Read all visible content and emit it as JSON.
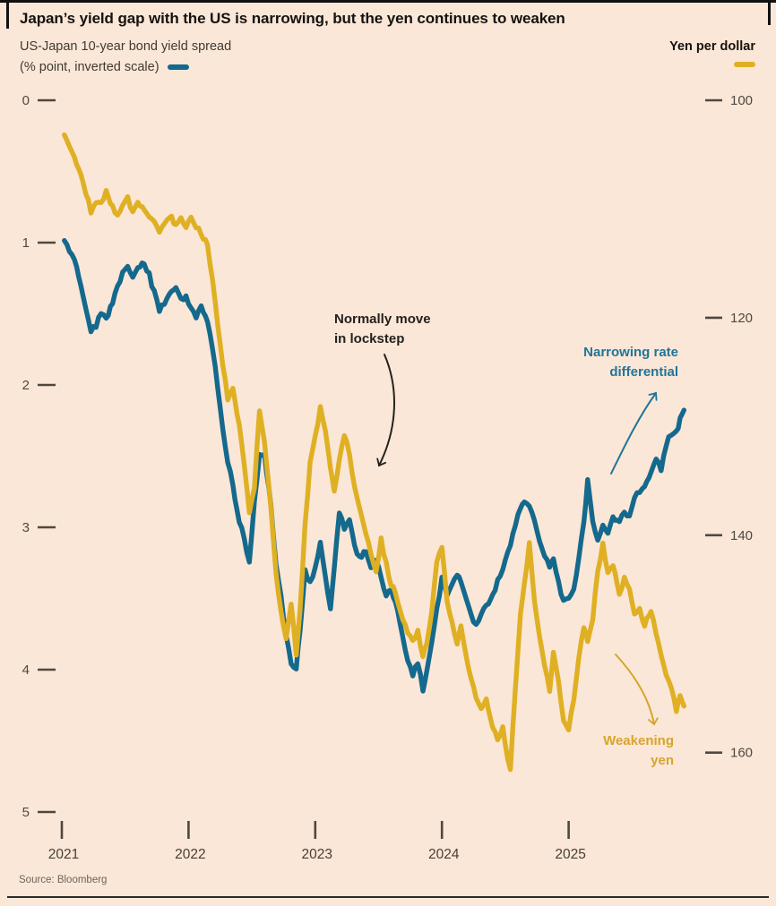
{
  "header": {
    "title": "Japan’s yield gap with the US is narrowing, but the yen continues to weaken",
    "subtitle_line1": "US-Japan 10-year bond yield spread",
    "subtitle_line2": "(% point, inverted scale)",
    "right_label": "Yen per dollar"
  },
  "source": "Source: Bloomberg",
  "colors": {
    "background": "#fbe7d7",
    "spread_line": "#14698d",
    "yen_line": "#dfb024",
    "annotation_dark": "#25211e",
    "annotation_teal": "#1f7599",
    "annotation_gold": "#d7a42c",
    "axis": "#4e4841",
    "rule": "#111111"
  },
  "chart_data": {
    "type": "line",
    "title": "Japan’s yield gap with the US is narrowing, but the yen continues to weaken",
    "xlabel": "Year",
    "left_axis": {
      "label": "US-Japan 10-year bond yield spread (% point, inverted scale)",
      "ticks": [
        0,
        1,
        2,
        3,
        4,
        5
      ],
      "range": [
        0,
        5
      ],
      "inverted": true
    },
    "right_axis": {
      "label": "Yen per dollar",
      "ticks": [
        100,
        120,
        140,
        160
      ],
      "range": [
        100,
        165.5
      ]
    },
    "x_axis": {
      "ticks": [
        2021,
        2022,
        2023,
        2024,
        2025
      ],
      "range": [
        2021.0,
        2025.95
      ]
    },
    "grid": false,
    "legend_position": "top",
    "series": [
      {
        "name": "US-Japan 10-year bond yield spread",
        "unit": "% point",
        "axis": "left",
        "color": "#14698d",
        "points": [
          [
            2021.02,
            0.98
          ],
          [
            2021.06,
            1.05
          ],
          [
            2021.1,
            1.12
          ],
          [
            2021.15,
            1.28
          ],
          [
            2021.19,
            1.45
          ],
          [
            2021.23,
            1.63
          ],
          [
            2021.27,
            1.58
          ],
          [
            2021.31,
            1.48
          ],
          [
            2021.35,
            1.55
          ],
          [
            2021.4,
            1.42
          ],
          [
            2021.44,
            1.3
          ],
          [
            2021.48,
            1.22
          ],
          [
            2021.52,
            1.17
          ],
          [
            2021.56,
            1.25
          ],
          [
            2021.6,
            1.18
          ],
          [
            2021.65,
            1.16
          ],
          [
            2021.69,
            1.22
          ],
          [
            2021.73,
            1.35
          ],
          [
            2021.77,
            1.48
          ],
          [
            2021.81,
            1.43
          ],
          [
            2021.85,
            1.35
          ],
          [
            2021.9,
            1.32
          ],
          [
            2021.94,
            1.4
          ],
          [
            2021.98,
            1.38
          ],
          [
            2022.02,
            1.48
          ],
          [
            2022.06,
            1.52
          ],
          [
            2022.1,
            1.45
          ],
          [
            2022.15,
            1.55
          ],
          [
            2022.19,
            1.75
          ],
          [
            2022.23,
            2.0
          ],
          [
            2022.27,
            2.3
          ],
          [
            2022.31,
            2.55
          ],
          [
            2022.35,
            2.7
          ],
          [
            2022.4,
            2.95
          ],
          [
            2022.44,
            3.1
          ],
          [
            2022.48,
            3.25
          ],
          [
            2022.52,
            2.8
          ],
          [
            2022.56,
            2.5
          ],
          [
            2022.6,
            2.48
          ],
          [
            2022.65,
            2.85
          ],
          [
            2022.69,
            3.25
          ],
          [
            2022.73,
            3.5
          ],
          [
            2022.77,
            3.75
          ],
          [
            2022.81,
            3.95
          ],
          [
            2022.85,
            4.0
          ],
          [
            2022.88,
            3.72
          ],
          [
            2022.92,
            3.3
          ],
          [
            2022.96,
            3.4
          ],
          [
            2023.0,
            3.3
          ],
          [
            2023.04,
            3.1
          ],
          [
            2023.08,
            3.35
          ],
          [
            2023.12,
            3.58
          ],
          [
            2023.15,
            3.3
          ],
          [
            2023.19,
            2.88
          ],
          [
            2023.23,
            3.02
          ],
          [
            2023.27,
            2.95
          ],
          [
            2023.31,
            3.12
          ],
          [
            2023.35,
            3.22
          ],
          [
            2023.4,
            3.18
          ],
          [
            2023.44,
            3.28
          ],
          [
            2023.48,
            3.22
          ],
          [
            2023.52,
            3.35
          ],
          [
            2023.56,
            3.48
          ],
          [
            2023.6,
            3.42
          ],
          [
            2023.65,
            3.6
          ],
          [
            2023.69,
            3.78
          ],
          [
            2023.73,
            3.92
          ],
          [
            2023.77,
            4.05
          ],
          [
            2023.81,
            3.95
          ],
          [
            2023.85,
            4.14
          ],
          [
            2023.88,
            4.02
          ],
          [
            2023.92,
            3.82
          ],
          [
            2023.96,
            3.58
          ],
          [
            2024.0,
            3.35
          ],
          [
            2024.04,
            3.48
          ],
          [
            2024.08,
            3.42
          ],
          [
            2024.12,
            3.32
          ],
          [
            2024.15,
            3.38
          ],
          [
            2024.19,
            3.52
          ],
          [
            2024.23,
            3.62
          ],
          [
            2024.27,
            3.68
          ],
          [
            2024.31,
            3.62
          ],
          [
            2024.35,
            3.55
          ],
          [
            2024.4,
            3.48
          ],
          [
            2024.44,
            3.38
          ],
          [
            2024.48,
            3.3
          ],
          [
            2024.52,
            3.18
          ],
          [
            2024.56,
            3.05
          ],
          [
            2024.6,
            2.92
          ],
          [
            2024.65,
            2.8
          ],
          [
            2024.69,
            2.85
          ],
          [
            2024.73,
            2.95
          ],
          [
            2024.77,
            3.08
          ],
          [
            2024.81,
            3.2
          ],
          [
            2024.85,
            3.28
          ],
          [
            2024.88,
            3.22
          ],
          [
            2024.92,
            3.38
          ],
          [
            2024.96,
            3.52
          ],
          [
            2025.0,
            3.5
          ],
          [
            2025.04,
            3.42
          ],
          [
            2025.08,
            3.22
          ],
          [
            2025.12,
            2.98
          ],
          [
            2025.15,
            2.68
          ],
          [
            2025.19,
            2.95
          ],
          [
            2025.23,
            3.1
          ],
          [
            2025.27,
            2.98
          ],
          [
            2025.31,
            3.05
          ],
          [
            2025.35,
            2.92
          ],
          [
            2025.4,
            2.98
          ],
          [
            2025.44,
            2.88
          ],
          [
            2025.48,
            2.92
          ],
          [
            2025.52,
            2.8
          ],
          [
            2025.56,
            2.76
          ],
          [
            2025.6,
            2.7
          ],
          [
            2025.65,
            2.62
          ],
          [
            2025.69,
            2.52
          ],
          [
            2025.73,
            2.58
          ],
          [
            2025.77,
            2.42
          ],
          [
            2025.81,
            2.35
          ],
          [
            2025.85,
            2.32
          ],
          [
            2025.88,
            2.24
          ],
          [
            2025.91,
            2.18
          ]
        ]
      },
      {
        "name": "Yen per dollar",
        "unit": "yen",
        "axis": "right",
        "color": "#dfb024",
        "points": [
          [
            2021.02,
            103.2
          ],
          [
            2021.06,
            104.2
          ],
          [
            2021.1,
            105.3
          ],
          [
            2021.15,
            106.6
          ],
          [
            2021.19,
            108.6
          ],
          [
            2021.23,
            110.3
          ],
          [
            2021.27,
            109.2
          ],
          [
            2021.31,
            109.6
          ],
          [
            2021.35,
            108.6
          ],
          [
            2021.4,
            109.6
          ],
          [
            2021.44,
            110.6
          ],
          [
            2021.48,
            109.8
          ],
          [
            2021.52,
            109.0
          ],
          [
            2021.56,
            110.2
          ],
          [
            2021.6,
            109.5
          ],
          [
            2021.65,
            110.0
          ],
          [
            2021.69,
            110.6
          ],
          [
            2021.73,
            111.4
          ],
          [
            2021.77,
            112.2
          ],
          [
            2021.81,
            111.2
          ],
          [
            2021.85,
            110.6
          ],
          [
            2021.9,
            111.6
          ],
          [
            2021.94,
            110.9
          ],
          [
            2021.98,
            111.6
          ],
          [
            2022.02,
            111.0
          ],
          [
            2022.06,
            111.5
          ],
          [
            2022.1,
            112.2
          ],
          [
            2022.15,
            113.5
          ],
          [
            2022.19,
            116.5
          ],
          [
            2022.23,
            120.5
          ],
          [
            2022.27,
            124.5
          ],
          [
            2022.31,
            127.5
          ],
          [
            2022.35,
            126.5
          ],
          [
            2022.4,
            130.0
          ],
          [
            2022.44,
            133.5
          ],
          [
            2022.48,
            138.0
          ],
          [
            2022.52,
            135.5
          ],
          [
            2022.56,
            128.5
          ],
          [
            2022.6,
            131.5
          ],
          [
            2022.65,
            137.5
          ],
          [
            2022.69,
            143.5
          ],
          [
            2022.73,
            147.0
          ],
          [
            2022.77,
            149.5
          ],
          [
            2022.81,
            146.5
          ],
          [
            2022.85,
            151.0
          ],
          [
            2022.88,
            147.0
          ],
          [
            2022.92,
            139.0
          ],
          [
            2022.96,
            133.5
          ],
          [
            2023.0,
            131.0
          ],
          [
            2023.04,
            128.0
          ],
          [
            2023.08,
            130.5
          ],
          [
            2023.12,
            134.0
          ],
          [
            2023.15,
            136.0
          ],
          [
            2023.19,
            133.0
          ],
          [
            2023.23,
            130.8
          ],
          [
            2023.27,
            132.5
          ],
          [
            2023.31,
            135.5
          ],
          [
            2023.35,
            137.5
          ],
          [
            2023.4,
            140.0
          ],
          [
            2023.44,
            141.5
          ],
          [
            2023.48,
            143.5
          ],
          [
            2023.52,
            140.5
          ],
          [
            2023.56,
            142.5
          ],
          [
            2023.6,
            144.5
          ],
          [
            2023.65,
            146.0
          ],
          [
            2023.69,
            147.5
          ],
          [
            2023.73,
            149.0
          ],
          [
            2023.77,
            149.8
          ],
          [
            2023.81,
            148.8
          ],
          [
            2023.85,
            151.2
          ],
          [
            2023.88,
            150.0
          ],
          [
            2023.92,
            147.0
          ],
          [
            2023.96,
            142.5
          ],
          [
            2024.0,
            141.0
          ],
          [
            2024.04,
            146.0
          ],
          [
            2024.08,
            148.0
          ],
          [
            2024.12,
            150.0
          ],
          [
            2024.15,
            148.5
          ],
          [
            2024.19,
            151.0
          ],
          [
            2024.23,
            153.0
          ],
          [
            2024.27,
            155.0
          ],
          [
            2024.31,
            156.0
          ],
          [
            2024.35,
            155.0
          ],
          [
            2024.4,
            157.5
          ],
          [
            2024.44,
            159.0
          ],
          [
            2024.48,
            157.5
          ],
          [
            2024.52,
            160.5
          ],
          [
            2024.54,
            161.7
          ],
          [
            2024.58,
            154.0
          ],
          [
            2024.62,
            147.0
          ],
          [
            2024.65,
            144.5
          ],
          [
            2024.69,
            141.0
          ],
          [
            2024.73,
            146.0
          ],
          [
            2024.77,
            149.0
          ],
          [
            2024.81,
            152.0
          ],
          [
            2024.85,
            154.5
          ],
          [
            2024.88,
            150.5
          ],
          [
            2024.92,
            153.5
          ],
          [
            2024.96,
            157.0
          ],
          [
            2025.0,
            157.8
          ],
          [
            2025.04,
            155.0
          ],
          [
            2025.08,
            151.5
          ],
          [
            2025.12,
            148.5
          ],
          [
            2025.15,
            149.8
          ],
          [
            2025.19,
            147.5
          ],
          [
            2025.23,
            143.5
          ],
          [
            2025.27,
            140.8
          ],
          [
            2025.31,
            143.5
          ],
          [
            2025.35,
            142.8
          ],
          [
            2025.4,
            145.5
          ],
          [
            2025.44,
            143.8
          ],
          [
            2025.48,
            144.8
          ],
          [
            2025.52,
            147.5
          ],
          [
            2025.56,
            146.8
          ],
          [
            2025.6,
            148.2
          ],
          [
            2025.65,
            147.2
          ],
          [
            2025.69,
            148.8
          ],
          [
            2025.73,
            150.8
          ],
          [
            2025.77,
            152.8
          ],
          [
            2025.81,
            154.0
          ],
          [
            2025.85,
            156.0
          ],
          [
            2025.88,
            154.8
          ],
          [
            2025.91,
            155.8
          ]
        ]
      }
    ],
    "annotations": [
      {
        "id": "lockstep",
        "text_lines": [
          "Normally move",
          "in lockstep"
        ],
        "color": "dark"
      },
      {
        "id": "narrowing",
        "text_lines": [
          "Narrowing rate",
          "differential"
        ],
        "color": "teal"
      },
      {
        "id": "weakening",
        "text_lines": [
          "Weakening",
          "yen"
        ],
        "color": "gold"
      }
    ]
  }
}
